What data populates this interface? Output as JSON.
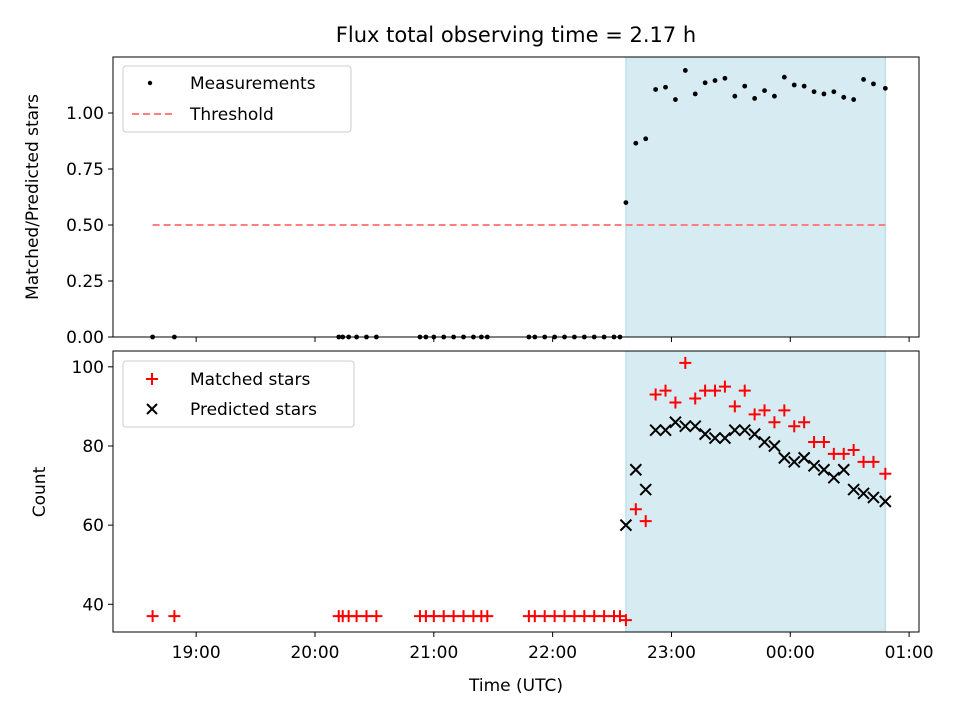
{
  "title": "Flux total observing time = 2.17 h",
  "colors": {
    "observing_band": "#add8e6",
    "threshold": "#ff7f7f",
    "measurements": "#000000",
    "matched": "#ff0000",
    "predicted": "#000000"
  },
  "chart_data": [
    {
      "type": "scatter",
      "ylabel": "Matched/Predicted stars",
      "ylim": [
        0,
        1.25
      ],
      "yticks": [
        {
          "value": 0.0,
          "label": "0.00"
        },
        {
          "value": 0.25,
          "label": "0.25"
        },
        {
          "value": 0.5,
          "label": "0.50"
        },
        {
          "value": 0.75,
          "label": "0.75"
        },
        {
          "value": 1.0,
          "label": "1.00"
        }
      ],
      "legend": {
        "placement": "upper left",
        "entries": [
          "Measurements",
          "Threshold"
        ]
      },
      "shaded_interval": [
        "22:37",
        "24:48"
      ],
      "threshold": {
        "name": "Threshold",
        "value": 0.5,
        "x_range": [
          "18:38",
          "24:48"
        ],
        "style": "dashed"
      },
      "series": [
        {
          "name": "Measurements",
          "marker": "dot",
          "x": [
            "18:38",
            "18:49",
            "20:12",
            "20:14",
            "20:17",
            "20:21",
            "20:26",
            "20:31",
            "20:53",
            "20:56",
            "21:00",
            "21:05",
            "21:10",
            "21:15",
            "21:20",
            "21:24",
            "21:27",
            "21:48",
            "21:51",
            "21:56",
            "22:01",
            "22:06",
            "22:11",
            "22:16",
            "22:21",
            "22:26",
            "22:31",
            "22:34",
            "22:37",
            "22:42",
            "22:47",
            "22:52",
            "22:57",
            "23:02",
            "23:07",
            "23:12",
            "23:17",
            "23:22",
            "23:27",
            "23:32",
            "23:37",
            "23:42",
            "23:47",
            "23:52",
            "23:57",
            "24:02",
            "24:07",
            "24:12",
            "24:17",
            "24:22",
            "24:27",
            "24:32",
            "24:37",
            "24:42",
            "24:48"
          ],
          "y": [
            0,
            0,
            0,
            0,
            0,
            0,
            0,
            0,
            0,
            0,
            0,
            0,
            0,
            0,
            0,
            0,
            0,
            0,
            0,
            0,
            0,
            0,
            0,
            0,
            0,
            0,
            0,
            0,
            0.6,
            0.865,
            0.885,
            1.105,
            1.115,
            1.06,
            1.19,
            1.085,
            1.135,
            1.145,
            1.155,
            1.075,
            1.12,
            1.065,
            1.1,
            1.075,
            1.16,
            1.125,
            1.12,
            1.095,
            1.085,
            1.095,
            1.07,
            1.06,
            1.15,
            1.13,
            1.11
          ]
        }
      ]
    },
    {
      "type": "scatter",
      "xlabel": "Time (UTC)",
      "ylabel": "Count",
      "ylim": [
        33,
        104
      ],
      "yticks": [
        {
          "value": 40,
          "label": "40"
        },
        {
          "value": 60,
          "label": "60"
        },
        {
          "value": 80,
          "label": "80"
        },
        {
          "value": 100,
          "label": "100"
        }
      ],
      "xlim": [
        "18:18",
        "25:05"
      ],
      "xticks": [
        {
          "value": "19:00",
          "label": "19:00"
        },
        {
          "value": "20:00",
          "label": "20:00"
        },
        {
          "value": "21:00",
          "label": "21:00"
        },
        {
          "value": "22:00",
          "label": "22:00"
        },
        {
          "value": "23:00",
          "label": "23:00"
        },
        {
          "value": "24:00",
          "label": "00:00"
        },
        {
          "value": "25:00",
          "label": "01:00"
        }
      ],
      "legend": {
        "placement": "upper left",
        "entries": [
          "Matched stars",
          "Predicted stars"
        ]
      },
      "shaded_interval": [
        "22:37",
        "24:48"
      ],
      "series": [
        {
          "name": "Matched stars",
          "marker": "plus",
          "x": [
            "18:38",
            "18:49",
            "20:12",
            "20:14",
            "20:17",
            "20:21",
            "20:26",
            "20:31",
            "20:53",
            "20:56",
            "21:00",
            "21:05",
            "21:10",
            "21:15",
            "21:20",
            "21:24",
            "21:27",
            "21:48",
            "21:51",
            "21:56",
            "22:01",
            "22:06",
            "22:11",
            "22:16",
            "22:21",
            "22:26",
            "22:31",
            "22:34",
            "22:37",
            "22:42",
            "22:47",
            "22:52",
            "22:57",
            "23:02",
            "23:07",
            "23:12",
            "23:17",
            "23:22",
            "23:27",
            "23:32",
            "23:37",
            "23:42",
            "23:47",
            "23:52",
            "23:57",
            "24:02",
            "24:07",
            "24:12",
            "24:17",
            "24:22",
            "24:27",
            "24:32",
            "24:37",
            "24:42",
            "24:48"
          ],
          "y": [
            37,
            37,
            37,
            37,
            37,
            37,
            37,
            37,
            37,
            37,
            37,
            37,
            37,
            37,
            37,
            37,
            37,
            37,
            37,
            37,
            37,
            37,
            37,
            37,
            37,
            37,
            37,
            37,
            36,
            64,
            61,
            93,
            94,
            91,
            101,
            92,
            94,
            94,
            95,
            90,
            94,
            88,
            89,
            86,
            89,
            85,
            86,
            81,
            81,
            78,
            78,
            79,
            76,
            76,
            73
          ]
        },
        {
          "name": "Predicted stars",
          "marker": "x",
          "x": [
            "22:37",
            "22:42",
            "22:47",
            "22:52",
            "22:57",
            "23:02",
            "23:07",
            "23:12",
            "23:17",
            "23:22",
            "23:27",
            "23:32",
            "23:37",
            "23:42",
            "23:47",
            "23:52",
            "23:57",
            "24:02",
            "24:07",
            "24:12",
            "24:17",
            "24:22",
            "24:27",
            "24:32",
            "24:37",
            "24:42",
            "24:48"
          ],
          "y": [
            60,
            74,
            69,
            84,
            84,
            86,
            85,
            85,
            83,
            82,
            82,
            84,
            84,
            83,
            81,
            80,
            77,
            76,
            77,
            75,
            74,
            72,
            74,
            69,
            68,
            67,
            66
          ]
        }
      ]
    }
  ]
}
